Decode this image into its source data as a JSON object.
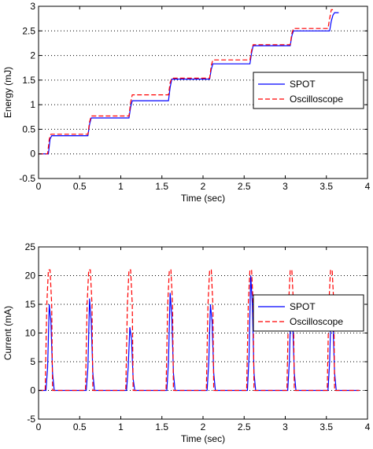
{
  "colors": {
    "spot": "#0000ff",
    "oscilloscope": "#ff0000",
    "grid": "#000000"
  },
  "chart_data": [
    {
      "type": "line",
      "title": "",
      "xlabel": "Time (sec)",
      "ylabel": "Energy (mJ)",
      "xlim": [
        0,
        4
      ],
      "ylim": [
        -0.5,
        3
      ],
      "xticks": [
        "0",
        "0.5",
        "1",
        "1.5",
        "2",
        "2.5",
        "3",
        "3.5",
        "4"
      ],
      "yticks": [
        "-0.5",
        "0",
        "0.5",
        "1",
        "1.5",
        "2",
        "2.5",
        "3"
      ],
      "grid": "horizontal dotted",
      "legend_position": "right",
      "legend": [
        "SPOT",
        "Oscilloscope"
      ],
      "series": [
        {
          "name": "SPOT",
          "color": "#0000ff",
          "style": "solid",
          "x": [
            0,
            0.12,
            0.14,
            0.16,
            0.6,
            0.62,
            0.64,
            1.1,
            1.12,
            1.14,
            1.58,
            1.6,
            1.62,
            2.08,
            2.1,
            2.12,
            2.57,
            2.59,
            2.61,
            3.06,
            3.08,
            3.1,
            3.54,
            3.56,
            3.58,
            3.6,
            3.65
          ],
          "y": [
            0,
            0,
            0.3,
            0.37,
            0.37,
            0.6,
            0.73,
            0.73,
            0.95,
            1.08,
            1.08,
            1.35,
            1.52,
            1.52,
            1.72,
            1.83,
            1.83,
            2.05,
            2.2,
            2.2,
            2.4,
            2.5,
            2.5,
            2.7,
            2.82,
            2.87,
            2.87
          ]
        },
        {
          "name": "Oscilloscope",
          "color": "#ff0000",
          "style": "dashed",
          "x": [
            0,
            0.11,
            0.13,
            0.15,
            0.6,
            0.62,
            0.64,
            1.1,
            1.12,
            1.14,
            1.58,
            1.6,
            1.62,
            2.08,
            2.1,
            2.12,
            2.57,
            2.59,
            2.61,
            3.06,
            3.08,
            3.1,
            3.52,
            3.54,
            3.56,
            3.58
          ],
          "y": [
            0,
            0,
            0.3,
            0.4,
            0.4,
            0.65,
            0.77,
            0.77,
            1.05,
            1.2,
            1.2,
            1.45,
            1.54,
            1.54,
            1.8,
            1.91,
            1.91,
            2.1,
            2.22,
            2.22,
            2.45,
            2.55,
            2.55,
            2.75,
            2.93,
            2.93
          ]
        }
      ]
    },
    {
      "type": "line",
      "title": "",
      "xlabel": "Time (sec)",
      "ylabel": "Current (mA)",
      "xlim": [
        0,
        4
      ],
      "ylim": [
        -5,
        25
      ],
      "xticks": [
        "0",
        "0.5",
        "1",
        "1.5",
        "2",
        "2.5",
        "3",
        "3.5",
        "4"
      ],
      "yticks": [
        "-5",
        "0",
        "5",
        "10",
        "15",
        "20",
        "25"
      ],
      "grid": "horizontal dotted",
      "legend_position": "right",
      "legend": [
        "SPOT",
        "Oscilloscope"
      ],
      "series": [
        {
          "name": "SPOT",
          "color": "#0000ff",
          "style": "solid",
          "x": [
            0,
            0.09,
            0.11,
            0.13,
            0.15,
            0.17,
            0.19,
            0.58,
            0.6,
            0.62,
            0.64,
            0.66,
            0.68,
            1.07,
            1.09,
            1.11,
            1.13,
            1.15,
            1.17,
            1.56,
            1.58,
            1.6,
            1.62,
            1.64,
            1.66,
            2.05,
            2.07,
            2.09,
            2.11,
            2.13,
            2.15,
            2.54,
            2.56,
            2.58,
            2.6,
            2.62,
            2.64,
            3.03,
            3.05,
            3.07,
            3.09,
            3.11,
            3.13,
            3.52,
            3.54,
            3.56,
            3.58,
            3.6,
            3.62,
            3.9
          ],
          "y": [
            0,
            0,
            4,
            15,
            12,
            3,
            0,
            0,
            4,
            16,
            12,
            3,
            0,
            0,
            4,
            11,
            9,
            2,
            0,
            0,
            5,
            17,
            13,
            3,
            0,
            0,
            5,
            15,
            12,
            3,
            0,
            0,
            6,
            20,
            15,
            3,
            0,
            0,
            5,
            16,
            12,
            3,
            0,
            0,
            5,
            16,
            12,
            3,
            0,
            0
          ]
        },
        {
          "name": "Oscilloscope",
          "color": "#ff0000",
          "style": "dashed",
          "x": [
            0,
            0.08,
            0.1,
            0.12,
            0.14,
            0.16,
            0.17,
            0.57,
            0.59,
            0.61,
            0.63,
            0.65,
            0.66,
            1.06,
            1.08,
            1.1,
            1.12,
            1.14,
            1.15,
            1.55,
            1.57,
            1.59,
            1.61,
            1.63,
            1.64,
            2.04,
            2.06,
            2.08,
            2.1,
            2.12,
            2.13,
            2.53,
            2.55,
            2.57,
            2.59,
            2.61,
            2.62,
            3.02,
            3.04,
            3.06,
            3.08,
            3.1,
            3.11,
            3.51,
            3.53,
            3.55,
            3.57,
            3.59,
            3.6,
            3.9
          ],
          "y": [
            0,
            0,
            15,
            21,
            21,
            15,
            0,
            0,
            15,
            21,
            21,
            15,
            0,
            0,
            15,
            21,
            21,
            15,
            0,
            0,
            15,
            21,
            21,
            15,
            0,
            0,
            15,
            21,
            21,
            15,
            0,
            0,
            15,
            21,
            21,
            15,
            0,
            0,
            15,
            21,
            21,
            15,
            0,
            0,
            15,
            21,
            21,
            15,
            0,
            0
          ]
        }
      ]
    }
  ]
}
